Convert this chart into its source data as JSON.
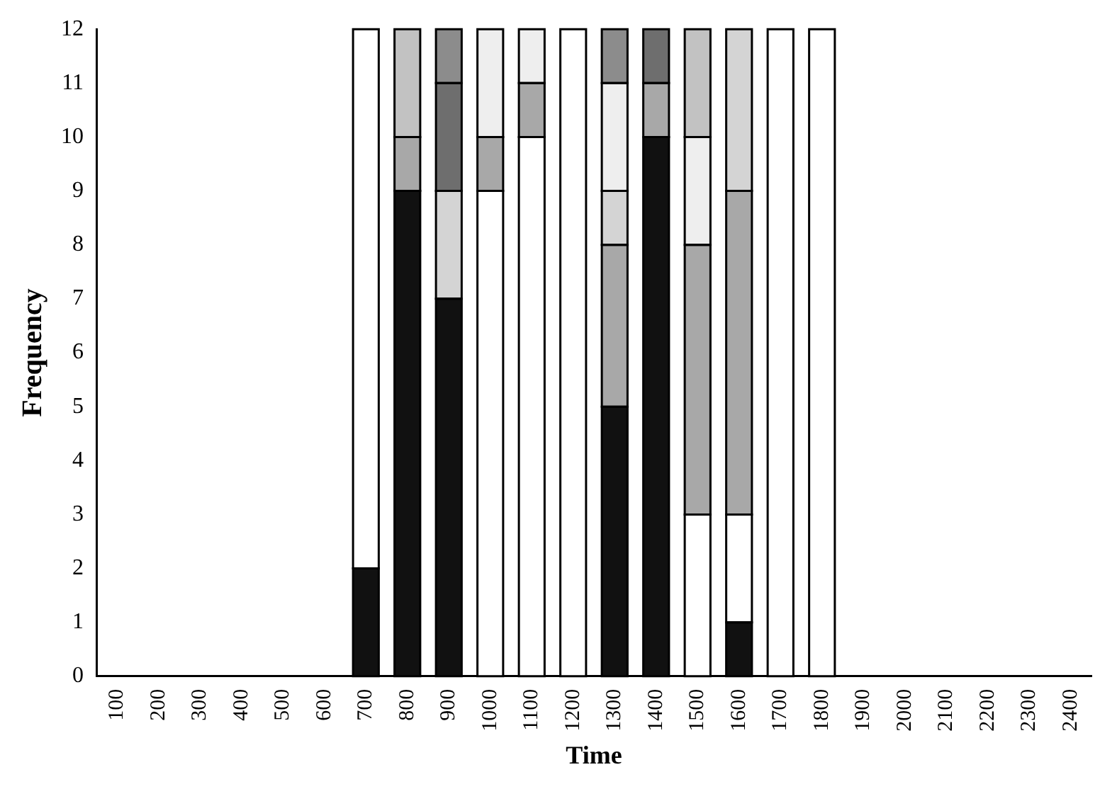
{
  "chart_data": {
    "type": "bar",
    "stacked": true,
    "xlabel": "Time",
    "ylabel": "Frequency",
    "categories": [
      "100",
      "200",
      "300",
      "400",
      "500",
      "600",
      "700",
      "800",
      "900",
      "1000",
      "1100",
      "1200",
      "1300",
      "1400",
      "1500",
      "1600",
      "1700",
      "1800",
      "1900",
      "2000",
      "2100",
      "2200",
      "2300",
      "2400"
    ],
    "series": [
      {
        "color": "#111111",
        "values": [
          0,
          0,
          0,
          0,
          0,
          0,
          2,
          9,
          7,
          0,
          0,
          0,
          5,
          10,
          0,
          1,
          0,
          0,
          0,
          0,
          0,
          0,
          0,
          0
        ]
      },
      {
        "color": "#ffffff",
        "values": [
          0,
          0,
          0,
          0,
          0,
          0,
          10,
          0,
          0,
          9,
          10,
          12,
          0,
          0,
          3,
          2,
          12,
          12,
          0,
          0,
          0,
          0,
          0,
          0
        ]
      },
      {
        "color": "#a8a8a8",
        "values": [
          0,
          0,
          0,
          0,
          0,
          0,
          0,
          1,
          0,
          1,
          1,
          0,
          3,
          1,
          5,
          6,
          0,
          0,
          0,
          0,
          0,
          0,
          0,
          0
        ]
      },
      {
        "color": "#d4d4d4",
        "values": [
          0,
          0,
          0,
          0,
          0,
          0,
          0,
          0,
          2,
          0,
          0,
          0,
          1,
          0,
          0,
          3,
          0,
          0,
          0,
          0,
          0,
          0,
          0,
          0
        ]
      },
      {
        "color": "#6e6e6e",
        "values": [
          0,
          0,
          0,
          0,
          0,
          0,
          0,
          0,
          2,
          0,
          0,
          0,
          0,
          1,
          0,
          0,
          0,
          0,
          0,
          0,
          0,
          0,
          0,
          0
        ]
      },
      {
        "color": "#eeeeee",
        "values": [
          0,
          0,
          0,
          0,
          0,
          0,
          0,
          0,
          0,
          2,
          1,
          0,
          2,
          0,
          2,
          0,
          0,
          0,
          0,
          0,
          0,
          0,
          0,
          0
        ]
      },
      {
        "color": "#c2c2c2",
        "values": [
          0,
          0,
          0,
          0,
          0,
          0,
          0,
          2,
          0,
          0,
          0,
          0,
          0,
          0,
          2,
          0,
          0,
          0,
          0,
          0,
          0,
          0,
          0,
          0
        ]
      },
      {
        "color": "#8c8c8c",
        "values": [
          0,
          0,
          0,
          0,
          0,
          0,
          0,
          0,
          1,
          0,
          0,
          0,
          1,
          0,
          0,
          0,
          0,
          0,
          0,
          0,
          0,
          0,
          0,
          0
        ]
      }
    ],
    "ylim": [
      0,
      12
    ],
    "yticks": [
      0,
      1,
      2,
      3,
      4,
      5,
      6,
      7,
      8,
      9,
      10,
      11,
      12
    ],
    "grid": false,
    "legend": false
  }
}
